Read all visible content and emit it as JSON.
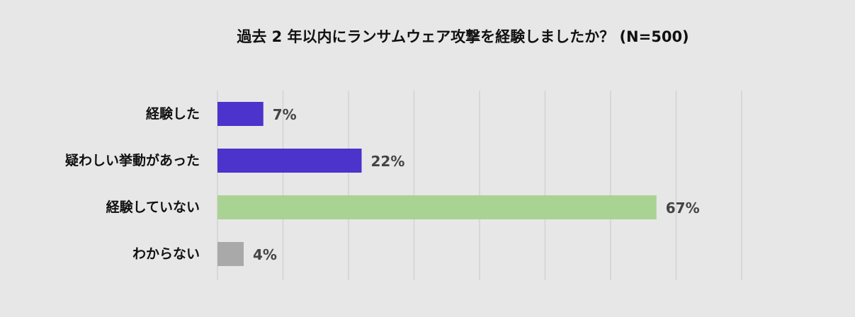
{
  "chart_data": {
    "type": "bar",
    "orientation": "horizontal",
    "title": "過去 2 年以内にランサムウェア攻撃を経験しましたか？ (N=500)",
    "categories": [
      "経験した",
      "疑わしい挙動があった",
      "経験していない",
      "わからない"
    ],
    "values": [
      7,
      22,
      67,
      4
    ],
    "value_labels": [
      "7%",
      "22%",
      "67%",
      "4%"
    ],
    "colors": [
      "#4b33cc",
      "#4b33cc",
      "#a9d393",
      "#a9a9a9"
    ],
    "xlim": [
      0,
      80
    ],
    "grid_step": 10,
    "grid": true,
    "legend": false,
    "xlabel": "",
    "ylabel": ""
  }
}
